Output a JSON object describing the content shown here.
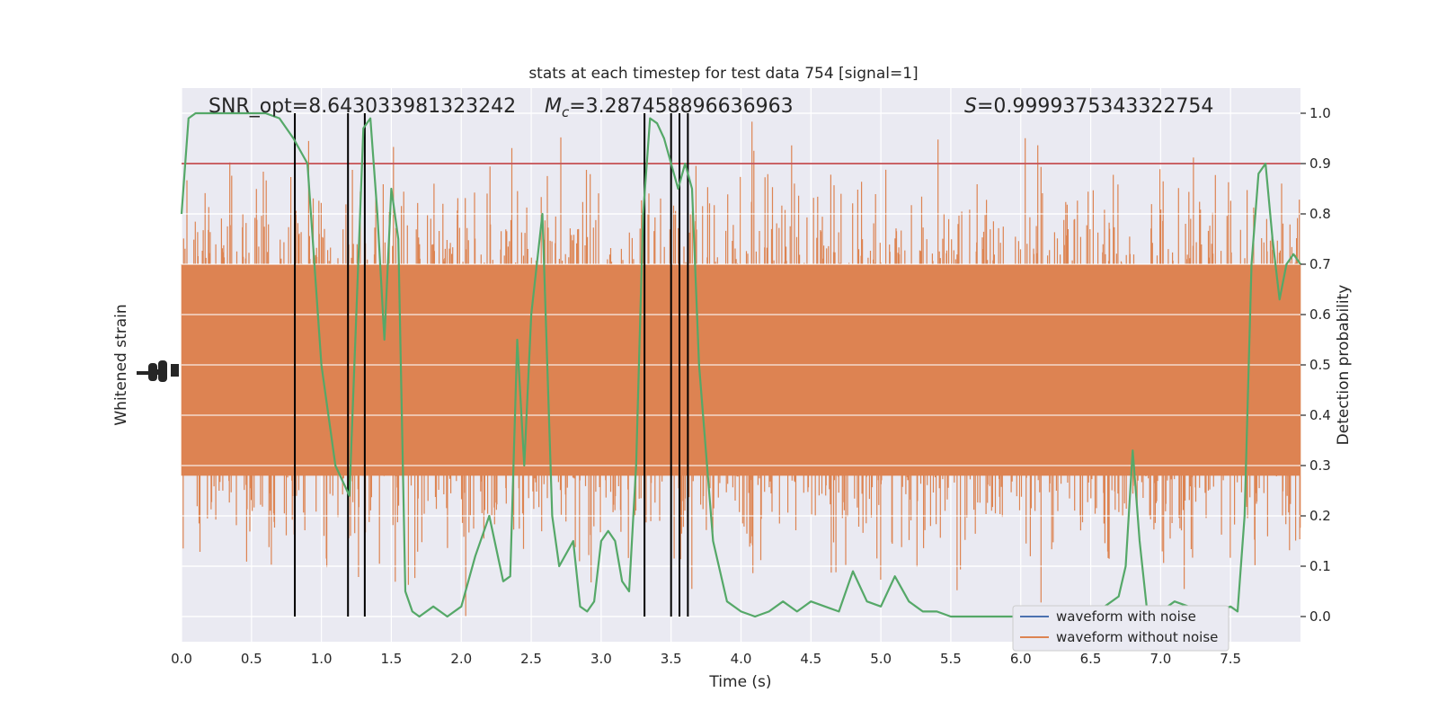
{
  "chart_data": {
    "type": "line",
    "title": "stats at each timestep for test data 754 [signal=1]",
    "xlabel": "Time (s)",
    "ylabel_left": "Whitened strain",
    "ylabel_right": "Detection probability",
    "xlim": [
      0,
      8
    ],
    "ylim_right": [
      -0.05,
      1.05
    ],
    "x_ticks": [
      0.0,
      0.5,
      1.0,
      1.5,
      2.0,
      2.5,
      3.0,
      3.5,
      4.0,
      4.5,
      5.0,
      5.5,
      6.0,
      6.5,
      7.0,
      7.5
    ],
    "x_tick_labels": [
      "0.0",
      "0.5",
      "1.0",
      "1.5",
      "2.0",
      "2.5",
      "3.0",
      "3.5",
      "4.0",
      "4.5",
      "5.0",
      "5.5",
      "6.0",
      "6.5",
      "7.0",
      "7.5"
    ],
    "y_right_ticks": [
      0.0,
      0.1,
      0.2,
      0.3,
      0.4,
      0.5,
      0.6,
      0.7,
      0.8,
      0.9,
      1.0
    ],
    "y_right_tick_labels": [
      "0.0",
      "0.1",
      "0.2",
      "0.3",
      "0.4",
      "0.5",
      "0.6",
      "0.7",
      "0.8",
      "0.9",
      "1.0"
    ],
    "grid": true,
    "legend_position": "lower-right",
    "annotations": {
      "snr": "SNR_opt=8.643033981323242",
      "mc_symbol": "M",
      "mc_sub": "c",
      "mc_value": "=3.287458896636963",
      "s_symbol": "S",
      "s_value": "=0.9999375343322754"
    },
    "threshold": 0.9,
    "vlines_x": [
      0.81,
      1.19,
      1.31,
      3.31,
      3.5,
      3.56,
      3.62
    ],
    "series": [
      {
        "name": "waveform with noise",
        "color": "#4c72b0"
      },
      {
        "name": "waveform without noise",
        "color": "#dd8452",
        "band": {
          "min": 0.0,
          "max": 1.0,
          "core_low": 0.28,
          "core_high": 0.7
        }
      },
      {
        "color": "#55a868",
        "x": [
          0.0,
          0.05,
          0.1,
          0.2,
          0.3,
          0.4,
          0.5,
          0.6,
          0.7,
          0.8,
          0.9,
          1.0,
          1.1,
          1.2,
          1.3,
          1.35,
          1.4,
          1.45,
          1.5,
          1.55,
          1.6,
          1.65,
          1.7,
          1.8,
          1.9,
          2.0,
          2.1,
          2.2,
          2.3,
          2.35,
          2.4,
          2.45,
          2.5,
          2.58,
          2.65,
          2.7,
          2.8,
          2.85,
          2.9,
          2.95,
          3.0,
          3.05,
          3.1,
          3.15,
          3.2,
          3.25,
          3.3,
          3.35,
          3.4,
          3.45,
          3.5,
          3.55,
          3.6,
          3.65,
          3.7,
          3.8,
          3.9,
          4.0,
          4.1,
          4.2,
          4.3,
          4.4,
          4.5,
          4.6,
          4.7,
          4.8,
          4.9,
          5.0,
          5.1,
          5.2,
          5.3,
          5.4,
          5.5,
          5.6,
          5.7,
          5.8,
          5.9,
          6.0,
          6.1,
          6.2,
          6.3,
          6.4,
          6.5,
          6.6,
          6.7,
          6.75,
          6.8,
          6.85,
          6.9,
          6.95,
          7.0,
          7.05,
          7.1,
          7.2,
          7.3,
          7.4,
          7.5,
          7.55,
          7.6,
          7.65,
          7.7,
          7.75,
          7.8,
          7.85,
          7.9,
          7.95,
          8.0
        ],
        "y": [
          0.8,
          0.99,
          1.0,
          1.0,
          1.0,
          1.0,
          1.0,
          1.0,
          0.99,
          0.95,
          0.9,
          0.5,
          0.3,
          0.24,
          0.97,
          0.99,
          0.8,
          0.55,
          0.85,
          0.75,
          0.05,
          0.01,
          0.0,
          0.02,
          0.0,
          0.02,
          0.12,
          0.2,
          0.07,
          0.08,
          0.55,
          0.3,
          0.6,
          0.8,
          0.2,
          0.1,
          0.15,
          0.02,
          0.01,
          0.03,
          0.15,
          0.17,
          0.15,
          0.07,
          0.05,
          0.3,
          0.8,
          0.99,
          0.98,
          0.95,
          0.9,
          0.85,
          0.9,
          0.85,
          0.5,
          0.15,
          0.03,
          0.01,
          0.0,
          0.01,
          0.03,
          0.01,
          0.03,
          0.02,
          0.01,
          0.09,
          0.03,
          0.02,
          0.08,
          0.03,
          0.01,
          0.01,
          0.0,
          0.0,
          0.0,
          0.0,
          0.0,
          0.0,
          0.0,
          0.0,
          0.0,
          0.0,
          0.01,
          0.02,
          0.04,
          0.1,
          0.33,
          0.15,
          0.02,
          0.01,
          0.01,
          0.02,
          0.03,
          0.02,
          0.01,
          0.01,
          0.02,
          0.01,
          0.2,
          0.7,
          0.88,
          0.9,
          0.75,
          0.63,
          0.7,
          0.72,
          0.7
        ]
      }
    ]
  }
}
